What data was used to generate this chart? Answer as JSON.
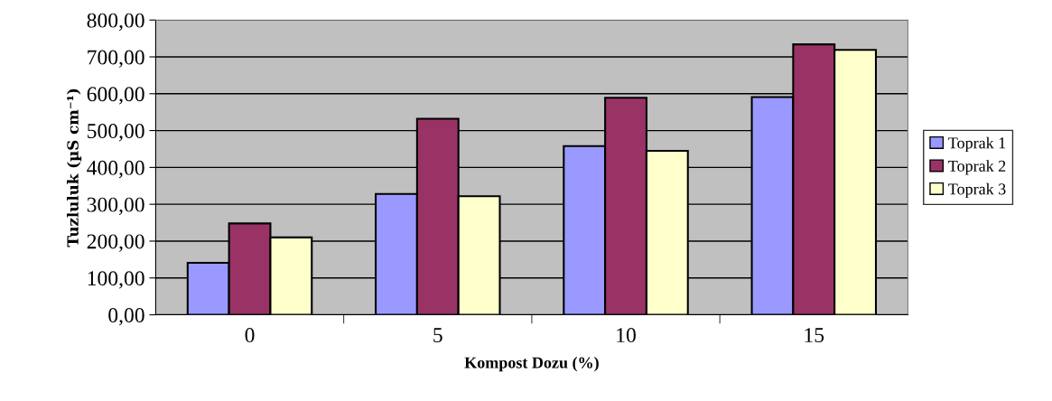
{
  "chart_data": {
    "type": "bar",
    "xlabel": "Kompost Dozu (%)",
    "ylabel": "Tuzluluk (µS cm⁻¹)",
    "categories": [
      "0",
      "5",
      "10",
      "15"
    ],
    "series": [
      {
        "name": "Toprak 1",
        "color": "#9999ff",
        "values": [
          141,
          328,
          458,
          591
        ]
      },
      {
        "name": "Toprak 2",
        "color": "#993366",
        "values": [
          248,
          532,
          589,
          734
        ]
      },
      {
        "name": "Toprak 3",
        "color": "#ffffcc",
        "values": [
          210,
          322,
          445,
          719
        ]
      }
    ],
    "ylim": [
      0,
      800
    ],
    "yticks": [
      {
        "value": 0,
        "label": "0,00"
      },
      {
        "value": 100,
        "label": "100,00"
      },
      {
        "value": 200,
        "label": "200,00"
      },
      {
        "value": 300,
        "label": "300,00"
      },
      {
        "value": 400,
        "label": "400,00"
      },
      {
        "value": 500,
        "label": "500,00"
      },
      {
        "value": 600,
        "label": "600,00"
      },
      {
        "value": 700,
        "label": "700,00"
      },
      {
        "value": 800,
        "label": "800,00"
      }
    ],
    "grid": "y",
    "legend": "right"
  }
}
